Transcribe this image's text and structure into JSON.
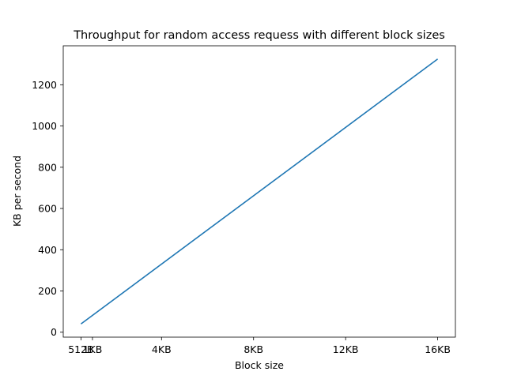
{
  "chart_data": {
    "type": "line",
    "title": "Throughput for random access requess with different block sizes",
    "xlabel": "Block size",
    "ylabel": "KB per second",
    "x": [
      0.5,
      16
    ],
    "x_unit": "KB",
    "series": [
      {
        "values": [
          40,
          1325
        ],
        "color": "#1f77b4"
      }
    ],
    "xlim": [
      -0.27,
      16.77
    ],
    "ylim": [
      -24,
      1389
    ],
    "x_ticks": [
      {
        "value": 0.5,
        "label": "512B"
      },
      {
        "value": 1,
        "label": "1KB"
      },
      {
        "value": 4,
        "label": "4KB"
      },
      {
        "value": 8,
        "label": "8KB"
      },
      {
        "value": 12,
        "label": "12KB"
      },
      {
        "value": 16,
        "label": "16KB"
      }
    ],
    "y_ticks": [
      0,
      200,
      400,
      600,
      800,
      1000,
      1200
    ],
    "grid": false,
    "legend": "none"
  }
}
